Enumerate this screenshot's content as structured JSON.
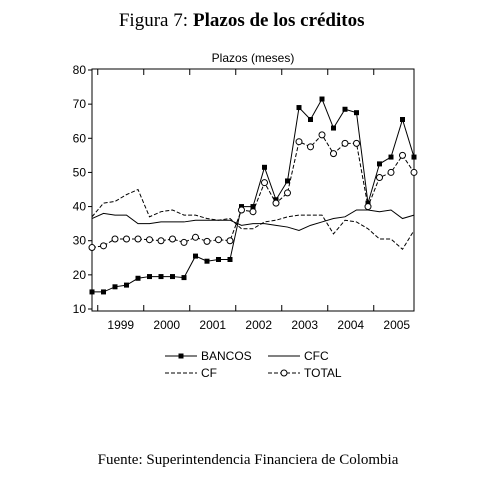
{
  "figure_label": "Figura 7:",
  "source": "Fuente: Superintendencia Financiera de Colombia",
  "chart_data": {
    "type": "line",
    "title": "Plazos de los créditos",
    "subtitle": "Plazos (meses)",
    "categories": [
      null,
      null,
      "1999",
      null,
      null,
      null,
      "2000",
      null,
      null,
      null,
      "2001",
      null,
      null,
      null,
      "2002",
      null,
      null,
      null,
      "2003",
      null,
      null,
      null,
      "2004",
      null,
      null,
      null,
      "2005",
      null,
      null
    ],
    "ylim": [
      10,
      80
    ],
    "yticks": [
      10,
      20,
      30,
      40,
      50,
      60,
      70,
      80
    ],
    "series": [
      {
        "name": "BANCOS",
        "color": "#000000",
        "marker": "square",
        "dashed": false,
        "values": [
          15,
          15,
          16.5,
          17,
          19,
          19.5,
          19.5,
          19.5,
          19.2,
          25.5,
          24,
          24.5,
          24.5,
          40,
          40,
          51.5,
          42,
          47.5,
          69,
          65.5,
          71.5,
          63,
          68.5,
          67.5,
          41,
          52.5,
          54.5,
          65.5,
          54.5
        ]
      },
      {
        "name": "CFC",
        "color": "#000000",
        "marker": null,
        "dashed": false,
        "values": [
          36.5,
          38,
          37.5,
          37.5,
          35,
          35,
          35.5,
          35.5,
          35.5,
          36,
          36,
          36,
          36,
          34.5,
          35,
          35,
          34.5,
          34,
          33,
          34.5,
          35.5,
          36.5,
          37,
          39,
          39,
          38.5,
          39,
          36.5,
          37.5
        ]
      },
      {
        "name": "CF",
        "color": "#000000",
        "marker": null,
        "dashed": true,
        "values": [
          37,
          41,
          41.5,
          43.5,
          45,
          37,
          38.5,
          39,
          37.5,
          37.5,
          36.5,
          36,
          36.5,
          33.5,
          33.5,
          35.5,
          36,
          37,
          37.5,
          37.5,
          37.5,
          32,
          36,
          35.5,
          33.5,
          30.5,
          30.5,
          27.5,
          33
        ]
      },
      {
        "name": "TOTAL",
        "color": "#000000",
        "marker": "circle",
        "dashed": true,
        "values": [
          28,
          28.5,
          30.5,
          30.5,
          30.5,
          30.3,
          30,
          30.5,
          29.5,
          31,
          29.8,
          30.3,
          30,
          39,
          38.5,
          47,
          41,
          44,
          59,
          57.5,
          61,
          55.5,
          58.5,
          58.5,
          40,
          48.5,
          50,
          55,
          50
        ]
      }
    ]
  }
}
